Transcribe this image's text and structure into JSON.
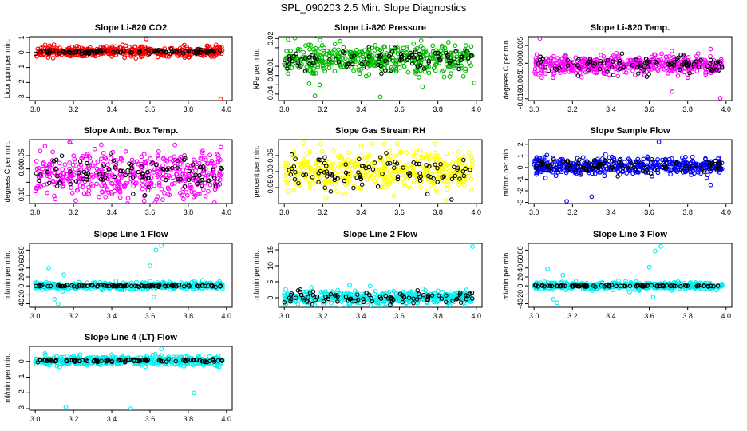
{
  "figure": {
    "title": "SPL_090203  2.5 Min. Slope Diagnostics"
  },
  "chart_data": [
    {
      "type": "scatter",
      "title": "Slope Li-820 CO2",
      "ylabel": "Licor ppm per min.",
      "color": "#ff0000",
      "xlim": [
        2.97,
        4.03
      ],
      "ylim": [
        -3.2,
        1.05
      ],
      "xticks": [
        3.0,
        3.2,
        3.4,
        3.6,
        3.8,
        4.0
      ],
      "yticks": [
        -3,
        -2,
        -1,
        0,
        1
      ],
      "center": 0.05,
      "spread": 0.17,
      "black_spread": 0.07,
      "outliers": [
        [
          3.58,
          0.9
        ],
        [
          3.97,
          -3.1
        ]
      ]
    },
    {
      "type": "scatter",
      "title": "Slope Li-820 Pressure",
      "ylabel": "kPa per min.",
      "color": "#00bb00",
      "xlim": [
        2.97,
        4.03
      ],
      "ylim": [
        -0.047,
        0.022
      ],
      "xticks": [
        3.0,
        3.2,
        3.4,
        3.6,
        3.8,
        4.0
      ],
      "yticks": [
        -0.04,
        -0.03,
        -0.02,
        -0.01,
        0.0,
        0.01,
        0.02
      ],
      "ytick_labels": [
        "-0.04",
        "",
        "-0.02",
        "-0.01",
        "",
        "",
        "0.02"
      ],
      "center": -0.002,
      "spread": 0.008,
      "black_spread": 0.006,
      "outliers": [
        [
          3.16,
          -0.042
        ],
        [
          3.5,
          -0.043
        ],
        [
          3.72,
          -0.032
        ],
        [
          3.99,
          -0.028
        ],
        [
          3.02,
          0.019
        ]
      ]
    },
    {
      "type": "scatter",
      "title": "Slope Li-820 Temp.",
      "ylabel": "degrees C per min.",
      "color": "#ff00ff",
      "xlim": [
        2.97,
        4.03
      ],
      "ylim": [
        -0.0105,
        0.0075
      ],
      "xticks": [
        3.0,
        3.2,
        3.4,
        3.6,
        3.8,
        4.0
      ],
      "yticks": [
        -0.01,
        -0.005,
        0.0,
        0.005
      ],
      "ytick_labels": [
        "-0.010",
        "-0.005",
        "0.000",
        "0.005"
      ],
      "center": -0.0005,
      "spread": 0.0013,
      "black_spread": 0.0012,
      "outliers": [
        [
          3.03,
          0.007
        ],
        [
          3.04,
          -0.004
        ],
        [
          3.72,
          -0.008
        ],
        [
          3.97,
          -0.0098
        ],
        [
          3.92,
          0.004
        ]
      ]
    },
    {
      "type": "scatter",
      "title": "Slope Amb. Box Temp.",
      "ylabel": "degrees C per min.",
      "color": "#ff00ff",
      "xlim": [
        2.97,
        4.03
      ],
      "ylim": [
        -0.13,
        0.11
      ],
      "xticks": [
        3.0,
        3.2,
        3.4,
        3.6,
        3.8,
        4.0
      ],
      "yticks": [
        -0.1,
        -0.05,
        0.0,
        0.05
      ],
      "ytick_labels": [
        "-0.10",
        "",
        "0.00",
        "0.05"
      ],
      "center": -0.02,
      "spread": 0.045,
      "black_spread": 0.03,
      "outliers": [
        [
          3.18,
          0.1
        ],
        [
          3.57,
          -0.12
        ],
        [
          3.73,
          0.09
        ]
      ]
    },
    {
      "type": "scatter",
      "title": "Slope Gas Stream RH",
      "ylabel": "percent per min.",
      "color": "#ffff00",
      "xlim": [
        2.97,
        4.03
      ],
      "ylim": [
        -0.1,
        0.1
      ],
      "xticks": [
        3.0,
        3.2,
        3.4,
        3.6,
        3.8,
        4.0
      ],
      "yticks": [
        -0.05,
        0.0,
        0.05
      ],
      "ytick_labels": [
        "-0.05",
        "0.00",
        "0.05"
      ],
      "center": 0.0,
      "spread": 0.03,
      "black_spread": 0.025,
      "outliers": [
        [
          3.4,
          0.08
        ],
        [
          3.84,
          -0.09
        ]
      ]
    },
    {
      "type": "scatter",
      "title": "Slope Sample Flow",
      "ylabel": "ml/min per min.",
      "color": "#0000ff",
      "xlim": [
        2.97,
        4.03
      ],
      "ylim": [
        -3.1,
        2.4
      ],
      "xticks": [
        3.0,
        3.2,
        3.4,
        3.6,
        3.8,
        4.0
      ],
      "yticks": [
        -3,
        -2,
        -1,
        0,
        1,
        2
      ],
      "center": 0.1,
      "spread": 0.35,
      "black_spread": 0.3,
      "outliers": [
        [
          3.65,
          2.2
        ],
        [
          3.3,
          -2.5
        ],
        [
          3.17,
          -2.9
        ],
        [
          3.92,
          -1.5
        ]
      ]
    },
    {
      "type": "scatter",
      "title": "Slope Line 1 Flow",
      "ylabel": "ml/min per min.",
      "color": "#00eeee",
      "xlim": [
        2.97,
        4.03
      ],
      "ylim": [
        -48,
        95
      ],
      "xticks": [
        3.0,
        3.2,
        3.4,
        3.6,
        3.8,
        4.0
      ],
      "yticks": [
        -40,
        -20,
        0,
        20,
        40,
        60,
        80
      ],
      "center": 0,
      "spread": 4,
      "black_spread": 1,
      "outliers": [
        [
          3.07,
          40
        ],
        [
          3.1,
          -30
        ],
        [
          3.12,
          -40
        ],
        [
          3.15,
          25
        ],
        [
          3.6,
          45
        ],
        [
          3.63,
          80
        ],
        [
          3.66,
          90
        ],
        [
          3.62,
          -25
        ]
      ]
    },
    {
      "type": "scatter",
      "title": "Slope Line 2 Flow",
      "ylabel": "ml/min per min.",
      "color": "#00eeee",
      "xlim": [
        2.97,
        4.03
      ],
      "ylim": [
        -3,
        17
      ],
      "xticks": [
        3.0,
        3.2,
        3.4,
        3.6,
        3.8,
        4.0
      ],
      "yticks": [
        0,
        5,
        10,
        15
      ],
      "center": 0,
      "spread": 1,
      "black_spread": 1,
      "outliers": [
        [
          3.98,
          16
        ],
        [
          3.34,
          4
        ]
      ]
    },
    {
      "type": "scatter",
      "title": "Slope Line 3 Flow",
      "ylabel": "ml/min per min.",
      "color": "#00eeee",
      "xlim": [
        2.97,
        4.03
      ],
      "ylim": [
        -48,
        95
      ],
      "xticks": [
        3.0,
        3.2,
        3.4,
        3.6,
        3.8,
        4.0
      ],
      "yticks": [
        -40,
        -20,
        0,
        20,
        40,
        60,
        80
      ],
      "center": 0,
      "spread": 4,
      "black_spread": 1,
      "outliers": [
        [
          3.07,
          38
        ],
        [
          3.1,
          -30
        ],
        [
          3.12,
          -38
        ],
        [
          3.15,
          24
        ],
        [
          3.6,
          42
        ],
        [
          3.63,
          78
        ],
        [
          3.66,
          88
        ],
        [
          3.62,
          -25
        ]
      ]
    },
    {
      "type": "scatter",
      "title": "Slope Line 4 (LT) Flow",
      "ylabel": "ml/min per min.",
      "color": "#00eeee",
      "xlim": [
        2.97,
        4.03
      ],
      "ylim": [
        -3.1,
        0.95
      ],
      "xticks": [
        3.0,
        3.2,
        3.4,
        3.6,
        3.8,
        4.0
      ],
      "yticks": [
        -3,
        -2,
        -1,
        0
      ],
      "center": 0.05,
      "spread": 0.15,
      "black_spread": 0.05,
      "outliers": [
        [
          3.16,
          -2.9
        ],
        [
          3.5,
          -3.0
        ],
        [
          3.83,
          -2.0
        ],
        [
          3.66,
          0.8
        ],
        [
          3.05,
          0.5
        ]
      ]
    }
  ]
}
